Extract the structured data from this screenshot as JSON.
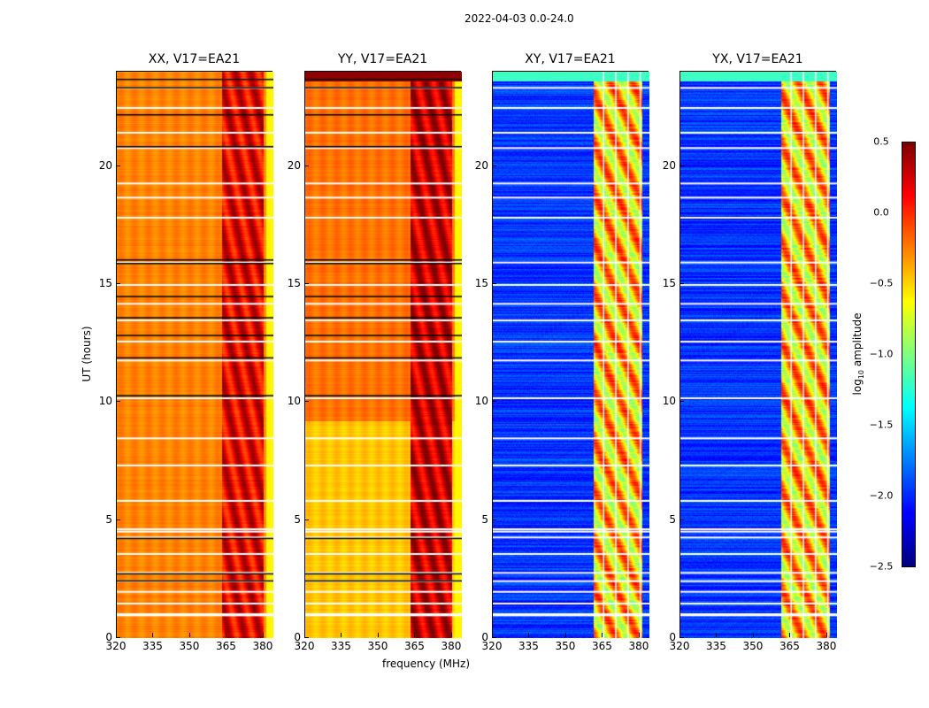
{
  "figure_title": "2022-04-03 0.0-24.0",
  "chart_data": {
    "type": "heatmap",
    "title": "2022-04-03 0.0-24.0",
    "xlabel": "frequency (MHz)",
    "ylabel": "UT (hours)",
    "xlim": [
      320,
      384
    ],
    "ylim": [
      0,
      24
    ],
    "xticks": [
      320,
      335,
      350,
      365,
      380
    ],
    "yticks": [
      0,
      5,
      10,
      15,
      20
    ],
    "panels": [
      {
        "title": "XX, V17=EA21",
        "kind": "parallel",
        "base": -0.3,
        "band_level": 0.1,
        "low_time_base": -0.3
      },
      {
        "title": "YY, V17=EA21",
        "kind": "parallel",
        "base": -0.25,
        "band_level": 0.2,
        "low_time_base": -0.5
      },
      {
        "title": "XY, V17=EA21",
        "kind": "cross",
        "base": -2.2,
        "band_level": -0.6
      },
      {
        "title": "YX, V17=EA21",
        "kind": "cross",
        "base": -2.2,
        "band_level": -0.6
      }
    ],
    "bright_band_mhz": [
      361,
      381
    ],
    "subband_edges_mhz": [
      365,
      370,
      375,
      380
    ],
    "flagged_times_hours": [
      1.0,
      1.05,
      1.5,
      2.0,
      2.45,
      2.8,
      3.6,
      4.3,
      4.55,
      4.65,
      5.85,
      7.35,
      8.5,
      10.2,
      11.8,
      12.6,
      13.5,
      14.2,
      15.0,
      15.95,
      17.85,
      18.7,
      19.3,
      20.8,
      21.45,
      22.5,
      23.35
    ],
    "parallel_marker_times_hours": [
      2.45,
      2.75,
      4.25,
      10.3,
      11.9,
      12.85,
      13.6,
      14.5,
      15.9,
      16.05,
      20.85,
      22.2,
      23.35,
      23.7
    ],
    "colorbar": {
      "label": "log10 amplitude",
      "label_main": "log",
      "label_sub": "10",
      "label_rest": " amplitude",
      "range": [
        -2.5,
        0.5
      ],
      "ticks": [
        "0.5",
        "0.0",
        "−0.5",
        "−1.0",
        "−1.5",
        "−2.0",
        "−2.5"
      ],
      "tick_values": [
        0.5,
        0.0,
        -0.5,
        -1.0,
        -1.5,
        -2.0,
        -2.5
      ],
      "colormap": "jet"
    }
  }
}
